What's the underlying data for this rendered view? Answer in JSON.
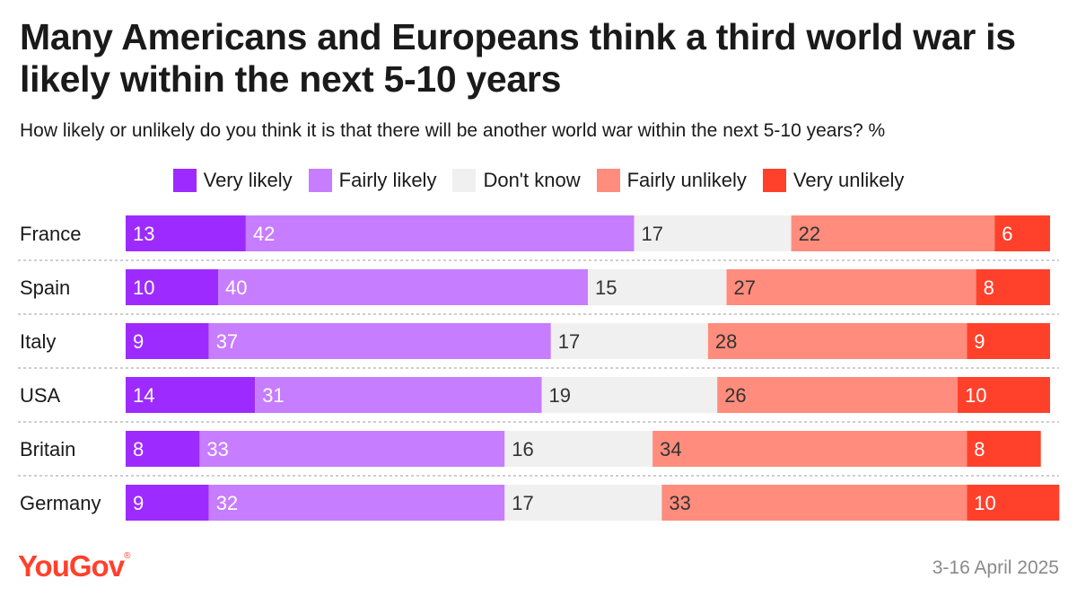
{
  "title": "Many Americans and Europeans think a third world war is likely within the next 5-10 years",
  "subtitle": "How likely or unlikely do you think it is that there will be another world war within the next 5-10 years? %",
  "brand": {
    "logo": "YouGov",
    "logo_mark": "®",
    "color": "#ff412c"
  },
  "date": "3-16 April 2025",
  "chart_data": {
    "type": "bar",
    "orientation": "horizontal",
    "stacked": true,
    "categories": [
      "France",
      "Spain",
      "Italy",
      "USA",
      "Britain",
      "Germany"
    ],
    "series": [
      {
        "name": "Very likely",
        "color": "#9d2bff",
        "values": [
          13,
          10,
          9,
          14,
          8,
          9
        ]
      },
      {
        "name": "Fairly likely",
        "color": "#c77dff",
        "values": [
          42,
          40,
          37,
          31,
          33,
          32
        ]
      },
      {
        "name": "Don't know",
        "color": "#f0f0f0",
        "values": [
          17,
          15,
          17,
          19,
          16,
          17
        ]
      },
      {
        "name": "Fairly unlikely",
        "color": "#ff8c7c",
        "values": [
          22,
          27,
          28,
          26,
          34,
          33
        ]
      },
      {
        "name": "Very unlikely",
        "color": "#ff412c",
        "values": [
          6,
          8,
          9,
          10,
          8,
          10
        ]
      }
    ],
    "xlim": [
      0,
      100
    ],
    "legend": "top",
    "grid": false
  }
}
